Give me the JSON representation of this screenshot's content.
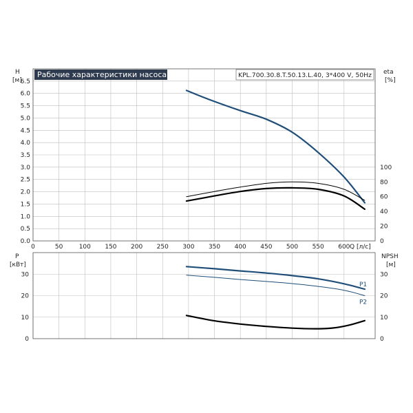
{
  "chart_data": [
    {
      "type": "line",
      "title": "Рабочие характеристики насоса",
      "model_label": "KPL.700.30.8.T.50.13.L.40, 3*400 V, 50Hz",
      "xlabel": "Q [л/с]",
      "ylabel_left": [
        "H",
        "[м]"
      ],
      "ylabel_right": [
        "eta",
        "[%]"
      ],
      "xlim": [
        0,
        660
      ],
      "ylim": [
        0,
        7
      ],
      "x_ticks": [
        0,
        50,
        100,
        150,
        200,
        250,
        300,
        350,
        400,
        450,
        500,
        550,
        600
      ],
      "y_ticks": [
        "0.0",
        "0.5",
        "1.0",
        "1.5",
        "2.0",
        "2.5",
        "3.0",
        "3.5",
        "4.0",
        "4.5",
        "5.0",
        "5.5",
        "6.0",
        "6.5"
      ],
      "y_right_ticks": [
        0,
        20,
        40,
        60,
        80,
        100
      ],
      "y_right_range": [
        0,
        100
      ],
      "grid": true,
      "series": [
        {
          "axis": "left",
          "color": "#1f4e79",
          "width": 2.2,
          "x": [
            296,
            340,
            400,
            450,
            500,
            550,
            600,
            640
          ],
          "y": [
            6.12,
            5.75,
            5.3,
            4.95,
            4.42,
            3.6,
            2.6,
            1.55
          ]
        },
        {
          "axis": "right",
          "color": "#000000",
          "width": 1,
          "x": [
            296,
            350,
            400,
            450,
            500,
            550,
            600,
            640
          ],
          "y": [
            60,
            67,
            73,
            78,
            80,
            78,
            70,
            55
          ]
        },
        {
          "axis": "right",
          "color": "#000000",
          "width": 2.2,
          "x": [
            296,
            350,
            400,
            450,
            500,
            550,
            600,
            640
          ],
          "y": [
            54,
            61,
            67,
            71,
            72,
            70,
            61,
            43
          ]
        }
      ]
    },
    {
      "type": "line",
      "xlim": [
        0,
        660
      ],
      "ylim": [
        0,
        40
      ],
      "ylabel_left": [
        "P",
        "[кВт]"
      ],
      "ylabel_right": [
        "NPSH",
        "[м]"
      ],
      "y_ticks": [
        0,
        10,
        20,
        30
      ],
      "y_right_ticks": [
        0,
        10,
        20,
        30
      ],
      "grid": true,
      "series": [
        {
          "name": "P1",
          "axis": "left",
          "color": "#1f4e79",
          "width": 2.2,
          "x": [
            296,
            350,
            400,
            450,
            500,
            550,
            600,
            640
          ],
          "y": [
            33.5,
            32.5,
            31.5,
            30.5,
            29.3,
            27.8,
            25.5,
            23
          ]
        },
        {
          "name": "P2",
          "axis": "left",
          "color": "#1f4e79",
          "width": 1,
          "x": [
            296,
            350,
            400,
            450,
            500,
            550,
            600,
            640
          ],
          "y": [
            29.5,
            28.5,
            27.5,
            26.6,
            25.6,
            24.3,
            22.5,
            20
          ]
        },
        {
          "axis": "right",
          "color": "#000000",
          "width": 2.2,
          "x": [
            296,
            350,
            400,
            450,
            500,
            550,
            580,
            610,
            640
          ],
          "y": [
            10.8,
            8.3,
            6.8,
            5.7,
            4.9,
            4.6,
            5.0,
            6.3,
            8.4
          ]
        }
      ]
    }
  ]
}
